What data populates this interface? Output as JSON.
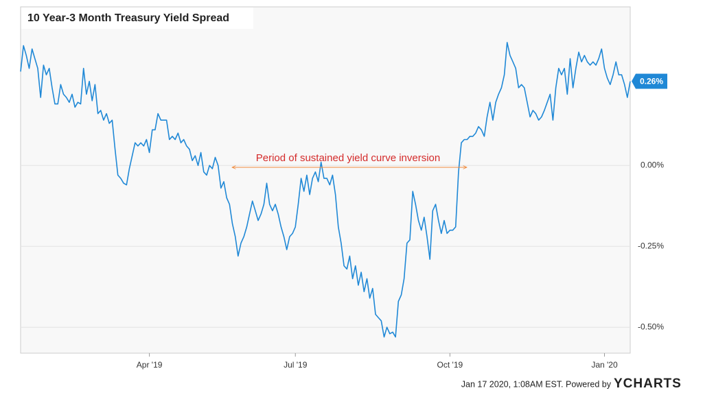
{
  "chart_data": {
    "type": "line",
    "title": "10 Year-3 Month Treasury Yield Spread",
    "annotation": "Period of sustained yield curve inversion",
    "callout": "0.26%",
    "footer": "Jan 17 2020, 1:08AM EST. Powered by",
    "brand": "YCHARTS",
    "xlim": [
      0,
      213
    ],
    "xticks": [
      {
        "value": 45,
        "label": "Apr '19"
      },
      {
        "value": 96,
        "label": "Jul '19"
      },
      {
        "value": 150,
        "label": "Oct '19"
      },
      {
        "value": 204,
        "label": "Jan '20"
      }
    ],
    "ylim": [
      -0.58,
      0.49
    ],
    "yticks": [
      {
        "value": 0,
        "label": "0.00%"
      },
      {
        "value": -0.25,
        "label": "-0.25%"
      },
      {
        "value": -0.5,
        "label": "-0.50%"
      }
    ],
    "grid": true,
    "series": [
      {
        "color": "#1f88d6",
        "values": [
          0.29,
          0.37,
          0.34,
          0.3,
          0.36,
          0.33,
          0.3,
          0.21,
          0.31,
          0.28,
          0.3,
          0.24,
          0.19,
          0.19,
          0.25,
          0.22,
          0.21,
          0.195,
          0.22,
          0.18,
          0.195,
          0.19,
          0.3,
          0.22,
          0.26,
          0.2,
          0.25,
          0.16,
          0.17,
          0.14,
          0.16,
          0.13,
          0.14,
          0.05,
          -0.03,
          -0.04,
          -0.055,
          -0.06,
          -0.01,
          0.03,
          0.07,
          0.06,
          0.07,
          0.06,
          0.08,
          0.04,
          0.11,
          0.11,
          0.16,
          0.14,
          0.14,
          0.14,
          0.08,
          0.09,
          0.08,
          0.1,
          0.07,
          0.08,
          0.06,
          0.05,
          0.015,
          0.03,
          0.0,
          0.04,
          -0.02,
          -0.03,
          0.0,
          -0.01,
          0.025,
          0.0,
          -0.07,
          -0.05,
          -0.1,
          -0.12,
          -0.18,
          -0.22,
          -0.28,
          -0.24,
          -0.22,
          -0.19,
          -0.15,
          -0.11,
          -0.14,
          -0.17,
          -0.15,
          -0.12,
          -0.055,
          -0.12,
          -0.14,
          -0.12,
          -0.15,
          -0.19,
          -0.22,
          -0.26,
          -0.22,
          -0.21,
          -0.19,
          -0.12,
          -0.04,
          -0.08,
          -0.03,
          -0.09,
          -0.04,
          -0.02,
          -0.05,
          0.01,
          -0.04,
          -0.04,
          -0.06,
          -0.03,
          -0.09,
          -0.19,
          -0.24,
          -0.31,
          -0.32,
          -0.28,
          -0.35,
          -0.31,
          -0.37,
          -0.33,
          -0.39,
          -0.35,
          -0.41,
          -0.38,
          -0.46,
          -0.47,
          -0.48,
          -0.53,
          -0.5,
          -0.52,
          -0.515,
          -0.53,
          -0.42,
          -0.4,
          -0.35,
          -0.24,
          -0.23,
          -0.08,
          -0.12,
          -0.17,
          -0.2,
          -0.16,
          -0.22,
          -0.29,
          -0.14,
          -0.12,
          -0.17,
          -0.21,
          -0.17,
          -0.21,
          -0.2,
          -0.2,
          -0.19,
          -0.02,
          0.07,
          0.08,
          0.08,
          0.09,
          0.09,
          0.1,
          0.12,
          0.11,
          0.09,
          0.15,
          0.195,
          0.14,
          0.195,
          0.22,
          0.24,
          0.28,
          0.38,
          0.34,
          0.32,
          0.3,
          0.24,
          0.25,
          0.24,
          0.195,
          0.15,
          0.17,
          0.16,
          0.14,
          0.15,
          0.17,
          0.195,
          0.22,
          0.14,
          0.24,
          0.3,
          0.28,
          0.3,
          0.22,
          0.33,
          0.24,
          0.3,
          0.35,
          0.32,
          0.34,
          0.32,
          0.31,
          0.32,
          0.31,
          0.33,
          0.36,
          0.3,
          0.27,
          0.25,
          0.28,
          0.32,
          0.28,
          0.28,
          0.25,
          0.21,
          0.26
        ]
      }
    ]
  }
}
